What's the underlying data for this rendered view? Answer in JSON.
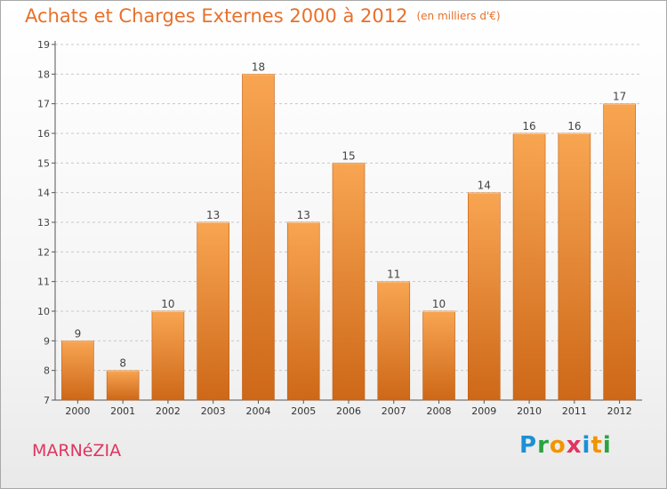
{
  "title": "Achats et Charges Externes 2000 à 2012",
  "unit": "(en milliers d'€)",
  "commune": "MARNéZIA",
  "logo": {
    "text": "Proxiti",
    "colors": [
      "#1d8fd6",
      "#2aa33f",
      "#f29400",
      "#e0355f",
      "#1d8fd6",
      "#f29400",
      "#2aa33f"
    ]
  },
  "colors": {
    "title": "#e8702a",
    "bar_top": "#f8a552",
    "bar_bottom": "#cd6818",
    "commune": "#e0355f"
  },
  "chart_data": {
    "type": "bar",
    "categories": [
      "2000",
      "2001",
      "2002",
      "2003",
      "2004",
      "2005",
      "2006",
      "2007",
      "2008",
      "2009",
      "2010",
      "2011",
      "2012"
    ],
    "values": [
      9,
      8,
      10,
      13,
      18,
      13,
      15,
      11,
      10,
      14,
      16,
      16,
      17
    ],
    "ylim": [
      7,
      19
    ],
    "yticks": [
      7,
      8,
      9,
      10,
      11,
      12,
      13,
      14,
      15,
      16,
      17,
      18,
      19
    ],
    "grid": "horizontal dashed",
    "data_labels": true
  }
}
